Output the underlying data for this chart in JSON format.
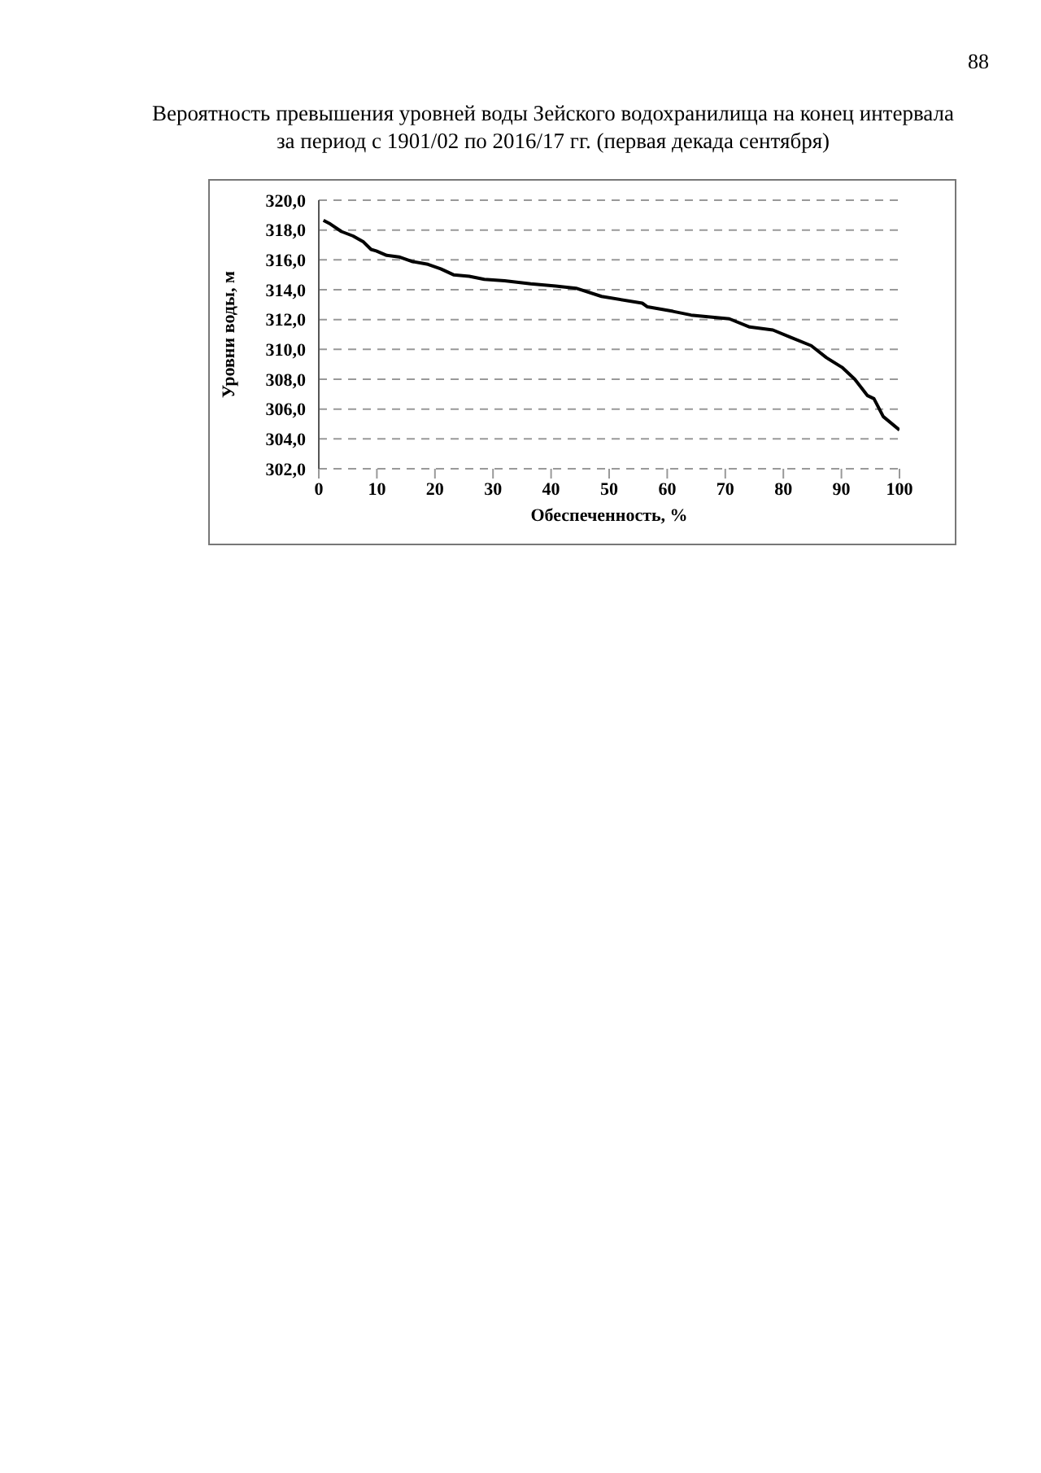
{
  "chart_data": {
    "type": "line",
    "title": "Вероятность превышения уровней воды Зейского водохранилища на конец интервала",
    "subtitle": "за период с 1901/02 по 2016/17 гг. (первая декада сентября)",
    "xlabel": "Обеспеченность, %",
    "ylabel": "Уровни воды, м",
    "annotations": [
      "88"
    ],
    "x": [
      0.8,
      2,
      3.9,
      5.9,
      7.7,
      9,
      9.9,
      11.7,
      13.8,
      16,
      18.8,
      21,
      23.2,
      25.9,
      28.5,
      32,
      36.5,
      40.8,
      44.3,
      48.7,
      55.7,
      56.6,
      61,
      64.1,
      70.7,
      74.2,
      78.2,
      81.3,
      84.8,
      87.4,
      90.1,
      92.3,
      94.5,
      95.6,
      97.2,
      100
    ],
    "series": [
      {
        "color": "#000000",
        "values": [
          318.65,
          318.4,
          317.9,
          317.6,
          317.2,
          316.7,
          316.6,
          316.3,
          316.2,
          315.9,
          315.7,
          315.4,
          315.0,
          314.9,
          314.7,
          314.6,
          314.4,
          314.25,
          314.1,
          313.55,
          313.1,
          312.85,
          312.55,
          312.3,
          312.05,
          311.5,
          311.3,
          310.8,
          310.25,
          309.45,
          308.8,
          308.0,
          306.9,
          306.7,
          305.5,
          304.6
        ]
      }
    ],
    "xlim": [
      0,
      100
    ],
    "xticks": [
      0,
      10,
      20,
      30,
      40,
      50,
      60,
      70,
      80,
      90,
      100
    ],
    "ylim": [
      302,
      320
    ],
    "yticks": [
      {
        "value": 302,
        "label": "302,0"
      },
      {
        "value": 304,
        "label": "304,0"
      },
      {
        "value": 306,
        "label": "306,0"
      },
      {
        "value": 308,
        "label": "308,0"
      },
      {
        "value": 310,
        "label": "310,0"
      },
      {
        "value": 312,
        "label": "312,0"
      },
      {
        "value": 314,
        "label": "314,0"
      },
      {
        "value": 316,
        "label": "316,0"
      },
      {
        "value": 318,
        "label": "318,0"
      },
      {
        "value": 320,
        "label": "320,0"
      }
    ],
    "grid": "y",
    "legend": false
  }
}
